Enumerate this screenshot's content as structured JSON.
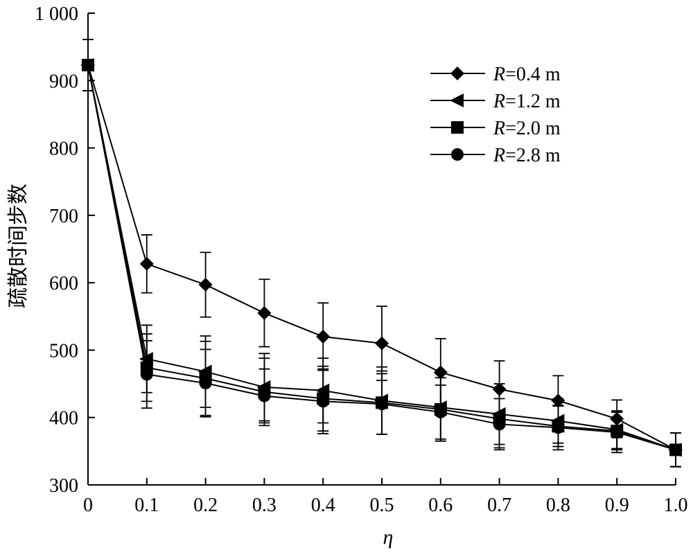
{
  "chart_data": {
    "type": "line",
    "xlabel": "η",
    "ylabel": "疏散时间步数",
    "xlim": [
      0,
      1.0
    ],
    "ylim": [
      300,
      1000
    ],
    "x": [
      0,
      0.1,
      0.2,
      0.3,
      0.4,
      0.5,
      0.6,
      0.7,
      0.8,
      0.9,
      1.0
    ],
    "x_tick_labels": [
      "0",
      "0.1",
      "0.2",
      "0.3",
      "0.4",
      "0.5",
      "0.6",
      "0.7",
      "0.8",
      "0.9",
      "1.0"
    ],
    "y_ticks": [
      300,
      400,
      500,
      600,
      700,
      800,
      900,
      1000
    ],
    "y_tick_labels": [
      "300",
      "400",
      "500",
      "600",
      "700",
      "800",
      "900",
      "1 000"
    ],
    "legend_position": "top-right",
    "series": [
      {
        "name": "R=0.4 m",
        "name_italic": "R",
        "name_rest": "=0.4 m",
        "marker": "diamond",
        "values": [
          923,
          628,
          597,
          555,
          520,
          510,
          467,
          442,
          425,
          398,
          352
        ],
        "errors": [
          38,
          43,
          48,
          50,
          50,
          55,
          50,
          42,
          37,
          28,
          25
        ]
      },
      {
        "name": "R=1.2 m",
        "name_italic": "R",
        "name_rest": "=1.2 m",
        "marker": "triangle-left",
        "values": [
          923,
          487,
          468,
          445,
          440,
          425,
          415,
          405,
          395,
          382,
          352
        ],
        "errors": [
          38,
          50,
          53,
          50,
          48,
          50,
          50,
          45,
          33,
          28,
          25
        ]
      },
      {
        "name": "R=2.0 m",
        "name_italic": "R",
        "name_rest": "=2.0 m",
        "marker": "square",
        "values": [
          923,
          474,
          458,
          438,
          428,
          422,
          412,
          398,
          387,
          380,
          352
        ],
        "errors": [
          38,
          50,
          55,
          50,
          48,
          47,
          47,
          43,
          30,
          28,
          25
        ]
      },
      {
        "name": "R=2.8 m",
        "name_italic": "R",
        "name_rest": "=2.8 m",
        "marker": "circle",
        "values": [
          923,
          464,
          451,
          432,
          424,
          420,
          408,
          390,
          385,
          378,
          352
        ],
        "errors": [
          38,
          50,
          50,
          40,
          48,
          45,
          40,
          38,
          33,
          30,
          25
        ]
      }
    ]
  }
}
